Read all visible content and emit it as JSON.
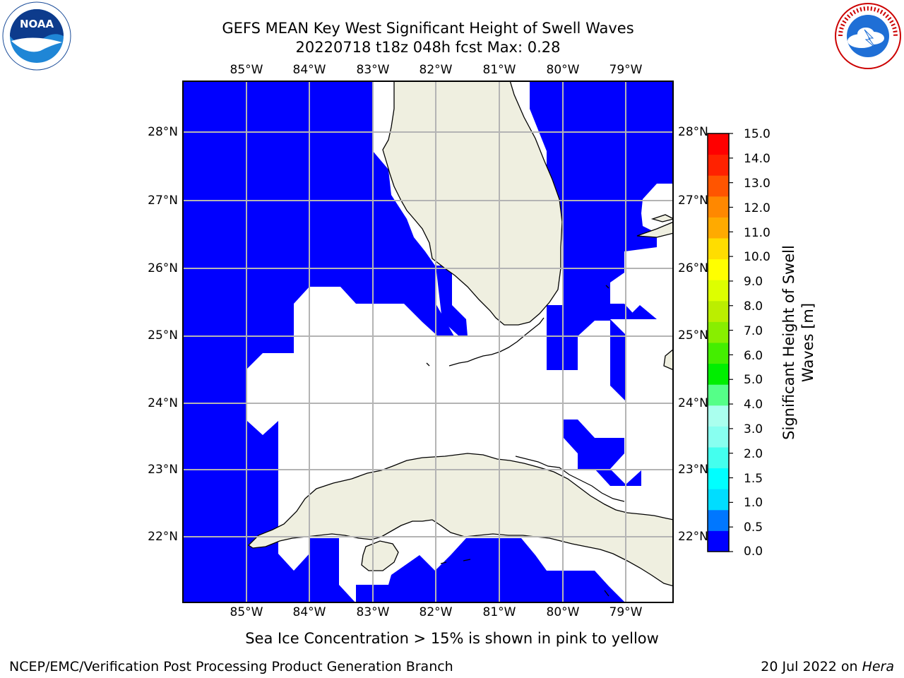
{
  "title": {
    "line1": "GEFS MEAN Key West Significant Height of Swell Waves",
    "line2": "20220718 t18z 048h fcst   Max: 0.28"
  },
  "logos": {
    "left": {
      "name": "NOAA",
      "text": "NOAA"
    },
    "right": {
      "name": "National Weather Service",
      "text": "NATIONAL WEATHER SERVICE"
    }
  },
  "map": {
    "lon_labels": [
      "85°W",
      "84°W",
      "83°W",
      "82°W",
      "81°W",
      "80°W",
      "79°W"
    ],
    "lat_labels": [
      "28°N",
      "27°N",
      "26°N",
      "25°N",
      "24°N",
      "23°N",
      "22°N"
    ],
    "land_color": "#efefe0",
    "swell_color": "#0000ff",
    "grid_color": "#b4b4b4"
  },
  "colorbar": {
    "label": "Significant Height of Swell Waves [m]",
    "label_line1": "Significant Height of Swell",
    "label_line2": "Waves [m]",
    "ticks": [
      "15.0",
      "14.0",
      "13.0",
      "12.0",
      "11.0",
      "10.0",
      "9.0",
      "8.0",
      "7.0",
      "6.0",
      "5.0",
      "4.0",
      "3.0",
      "2.0",
      "1.5",
      "1.0",
      "0.5",
      "0.0"
    ],
    "colors": [
      "#0000ff",
      "#0077ff",
      "#00ddff",
      "#00ffff",
      "#44ffee",
      "#88fff0",
      "#aaffee",
      "#55ff88",
      "#00ee00",
      "#44ee00",
      "#88ee00",
      "#bbee00",
      "#ddff00",
      "#ffff00",
      "#ffdd00",
      "#ffaa00",
      "#ff8800",
      "#ff5500",
      "#ff2200",
      "#ff0000"
    ]
  },
  "note": "Sea Ice Concentration > 15% is shown in pink to yellow",
  "footer": {
    "left": "NCEP/EMC/Verification Post Processing Product Generation Branch",
    "date": "20 Jul 2022 on ",
    "machine": "Hera"
  }
}
